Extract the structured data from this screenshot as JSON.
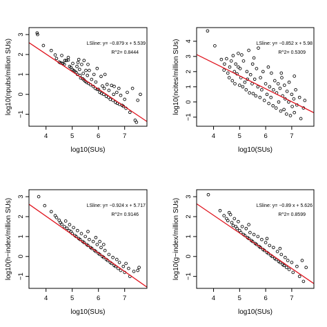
{
  "chart_data": [
    {
      "type": "scatter",
      "xlabel": "log10(SUs)",
      "ylabel": "log10(npubs/million SUs)",
      "xlim": [
        3.35,
        7.85
      ],
      "ylim": [
        -1.6,
        3.35
      ],
      "xticks": [
        4,
        5,
        6,
        7
      ],
      "yticks": [
        -1,
        0,
        1,
        2,
        3
      ],
      "fit": {
        "slope": -0.879,
        "intercept": 5.539,
        "color": "#e0141e"
      },
      "annotation": {
        "equation": "LSline: y= −0.879 x + 5.539",
        "r2": "R^2= 0.8444"
      },
      "points": [
        [
          3.66,
          3.08
        ],
        [
          3.68,
          3.0
        ],
        [
          3.9,
          2.45
        ],
        [
          4.2,
          2.2
        ],
        [
          4.35,
          1.98
        ],
        [
          4.4,
          1.8
        ],
        [
          4.5,
          1.62
        ],
        [
          4.55,
          1.58
        ],
        [
          4.6,
          1.56
        ],
        [
          4.65,
          1.55
        ],
        [
          4.7,
          1.5
        ],
        [
          4.72,
          1.7
        ],
        [
          4.78,
          1.7
        ],
        [
          4.85,
          1.72
        ],
        [
          4.9,
          1.4
        ],
        [
          4.95,
          1.35
        ],
        [
          5.0,
          1.25
        ],
        [
          5.02,
          1.55
        ],
        [
          5.05,
          1.2
        ],
        [
          5.1,
          1.15
        ],
        [
          5.15,
          1.1
        ],
        [
          5.18,
          1.4
        ],
        [
          5.2,
          1.0
        ],
        [
          5.22,
          1.6
        ],
        [
          5.28,
          1.25
        ],
        [
          5.3,
          0.95
        ],
        [
          5.32,
          0.82
        ],
        [
          5.36,
          1.5
        ],
        [
          5.4,
          0.78
        ],
        [
          5.42,
          1.05
        ],
        [
          5.45,
          0.72
        ],
        [
          5.5,
          0.65
        ],
        [
          5.52,
          1.2
        ],
        [
          5.55,
          0.6
        ],
        [
          5.58,
          0.95
        ],
        [
          5.62,
          0.55
        ],
        [
          5.65,
          1.2
        ],
        [
          5.7,
          0.48
        ],
        [
          5.74,
          0.75
        ],
        [
          5.8,
          0.4
        ],
        [
          5.83,
          1.0
        ],
        [
          5.88,
          0.3
        ],
        [
          5.9,
          0.62
        ],
        [
          5.95,
          0.25
        ],
        [
          6.0,
          0.25
        ],
        [
          6.05,
          0.1
        ],
        [
          6.1,
          0.9
        ],
        [
          6.12,
          0.05
        ],
        [
          6.15,
          0.42
        ],
        [
          6.2,
          0.0
        ],
        [
          6.22,
          0.3
        ],
        [
          6.25,
          1.0
        ],
        [
          6.3,
          -0.1
        ],
        [
          6.33,
          0.5
        ],
        [
          6.38,
          -0.15
        ],
        [
          6.4,
          0.2
        ],
        [
          6.45,
          -0.25
        ],
        [
          6.5,
          0.45
        ],
        [
          6.55,
          -0.3
        ],
        [
          6.58,
          0.0
        ],
        [
          6.6,
          0.4
        ],
        [
          6.65,
          -0.4
        ],
        [
          6.7,
          0.1
        ],
        [
          6.72,
          -0.45
        ],
        [
          6.78,
          0.3
        ],
        [
          6.8,
          -0.5
        ],
        [
          6.85,
          -0.05
        ],
        [
          6.9,
          -0.55
        ],
        [
          6.95,
          -0.6
        ],
        [
          7.0,
          -0.25
        ],
        [
          7.05,
          -0.7
        ],
        [
          7.1,
          0.1
        ],
        [
          7.2,
          -0.9
        ],
        [
          7.3,
          0.3
        ],
        [
          7.4,
          -1.3
        ],
        [
          7.45,
          -1.4
        ],
        [
          7.5,
          -0.3
        ],
        [
          7.6,
          0.0
        ],
        [
          4.6,
          1.95
        ],
        [
          4.85,
          1.85
        ],
        [
          5.25,
          1.75
        ],
        [
          5.45,
          1.7
        ],
        [
          5.6,
          1.5
        ],
        [
          5.95,
          1.3
        ]
      ]
    },
    {
      "type": "scatter",
      "xlabel": "log10(SUs)",
      "ylabel": "log10(ncites/million SUs)",
      "xlim": [
        3.35,
        7.85
      ],
      "ylim": [
        -1.6,
        4.9
      ],
      "xticks": [
        4,
        5,
        6,
        7
      ],
      "yticks": [
        -1,
        0,
        1,
        2,
        3,
        4
      ],
      "fit": {
        "slope": -0.852,
        "intercept": 5.98,
        "color": "#e0141e"
      },
      "annotation": {
        "equation": "LSline: y= −0.852 x + 5.98",
        "r2": "R^2= 0.5309"
      },
      "points": [
        [
          3.77,
          4.68
        ],
        [
          4.05,
          3.7
        ],
        [
          4.3,
          2.8
        ],
        [
          4.4,
          2.1
        ],
        [
          4.42,
          2.5
        ],
        [
          4.5,
          2.85
        ],
        [
          4.55,
          1.9
        ],
        [
          4.6,
          1.6
        ],
        [
          4.62,
          2.3
        ],
        [
          4.68,
          2.7
        ],
        [
          4.72,
          1.4
        ],
        [
          4.75,
          3.05
        ],
        [
          4.8,
          2.0
        ],
        [
          4.82,
          1.2
        ],
        [
          4.85,
          2.5
        ],
        [
          4.9,
          1.85
        ],
        [
          4.95,
          2.3
        ],
        [
          5.0,
          1.1
        ],
        [
          5.02,
          2.2
        ],
        [
          5.05,
          1.6
        ],
        [
          5.08,
          3.1
        ],
        [
          5.12,
          1.0
        ],
        [
          5.15,
          2.7
        ],
        [
          5.2,
          1.3
        ],
        [
          5.25,
          0.8
        ],
        [
          5.28,
          2.0
        ],
        [
          5.3,
          1.5
        ],
        [
          5.35,
          3.4
        ],
        [
          5.38,
          0.6
        ],
        [
          5.42,
          1.8
        ],
        [
          5.48,
          1.2
        ],
        [
          5.5,
          2.5
        ],
        [
          5.52,
          0.55
        ],
        [
          5.58,
          1.5
        ],
        [
          5.62,
          0.4
        ],
        [
          5.65,
          2.2
        ],
        [
          5.7,
          1.0
        ],
        [
          5.72,
          3.55
        ],
        [
          5.78,
          0.3
        ],
        [
          5.8,
          1.6
        ],
        [
          5.85,
          0.8
        ],
        [
          5.9,
          2.0
        ],
        [
          5.95,
          0.1
        ],
        [
          6.0,
          1.2
        ],
        [
          6.05,
          0.5
        ],
        [
          6.1,
          2.3
        ],
        [
          6.12,
          -0.1
        ],
        [
          6.15,
          1.0
        ],
        [
          6.2,
          0.3
        ],
        [
          6.22,
          1.9
        ],
        [
          6.28,
          -0.25
        ],
        [
          6.3,
          0.8
        ],
        [
          6.35,
          1.4
        ],
        [
          6.4,
          -0.4
        ],
        [
          6.42,
          0.6
        ],
        [
          6.48,
          1.2
        ],
        [
          6.5,
          0.0
        ],
        [
          6.55,
          0.9
        ],
        [
          6.58,
          -0.6
        ],
        [
          6.62,
          1.6
        ],
        [
          6.65,
          0.4
        ],
        [
          6.7,
          -0.5
        ],
        [
          6.72,
          1.1
        ],
        [
          6.75,
          0.2
        ],
        [
          6.8,
          -0.8
        ],
        [
          6.82,
          0.7
        ],
        [
          6.88,
          0.0
        ],
        [
          6.9,
          1.3
        ],
        [
          6.95,
          -0.9
        ],
        [
          7.0,
          0.5
        ],
        [
          7.02,
          -0.3
        ],
        [
          7.08,
          0.2
        ],
        [
          7.1,
          -0.7
        ],
        [
          7.15,
          0.8
        ],
        [
          7.2,
          -0.2
        ],
        [
          7.3,
          0.3
        ],
        [
          7.35,
          -1.1
        ],
        [
          7.45,
          -0.4
        ],
        [
          7.5,
          0.1
        ],
        [
          7.1,
          1.7
        ],
        [
          6.6,
          1.9
        ],
        [
          5.55,
          2.9
        ],
        [
          4.95,
          3.2
        ]
      ]
    },
    {
      "type": "scatter",
      "xlabel": "log10(SUs)",
      "ylabel": "log10(h−index/million SUs)",
      "xlim": [
        3.35,
        7.85
      ],
      "ylim": [
        -1.6,
        3.35
      ],
      "xticks": [
        4,
        5,
        6,
        7
      ],
      "yticks": [
        -1,
        0,
        1,
        2,
        3
      ],
      "fit": {
        "slope": -0.924,
        "intercept": 5.717,
        "color": "#e0141e"
      },
      "annotation": {
        "equation": "LSline: y= −0.924 x + 5.717",
        "r2": "R^2= 0.9146"
      },
      "points": [
        [
          3.72,
          3.0
        ],
        [
          3.95,
          2.55
        ],
        [
          4.2,
          2.25
        ],
        [
          4.4,
          1.95
        ],
        [
          4.5,
          1.82
        ],
        [
          4.55,
          1.7
        ],
        [
          4.6,
          1.62
        ],
        [
          4.7,
          1.5
        ],
        [
          4.75,
          1.78
        ],
        [
          4.8,
          1.42
        ],
        [
          4.88,
          1.3
        ],
        [
          4.9,
          1.6
        ],
        [
          4.95,
          1.25
        ],
        [
          5.0,
          1.15
        ],
        [
          5.05,
          1.45
        ],
        [
          5.1,
          1.05
        ],
        [
          5.15,
          1.0
        ],
        [
          5.2,
          1.3
        ],
        [
          5.25,
          0.9
        ],
        [
          5.3,
          0.85
        ],
        [
          5.35,
          1.15
        ],
        [
          5.4,
          0.75
        ],
        [
          5.45,
          0.7
        ],
        [
          5.5,
          1.0
        ],
        [
          5.55,
          0.6
        ],
        [
          5.6,
          0.55
        ],
        [
          5.65,
          0.85
        ],
        [
          5.7,
          0.45
        ],
        [
          5.75,
          0.4
        ],
        [
          5.8,
          0.75
        ],
        [
          5.85,
          0.3
        ],
        [
          5.9,
          0.25
        ],
        [
          5.95,
          0.6
        ],
        [
          6.0,
          0.15
        ],
        [
          6.05,
          0.1
        ],
        [
          6.1,
          0.45
        ],
        [
          6.15,
          0.0
        ],
        [
          6.2,
          -0.05
        ],
        [
          6.25,
          0.3
        ],
        [
          6.3,
          -0.15
        ],
        [
          6.35,
          -0.2
        ],
        [
          6.4,
          0.1
        ],
        [
          6.45,
          -0.3
        ],
        [
          6.5,
          -0.35
        ],
        [
          6.55,
          -0.05
        ],
        [
          6.6,
          -0.45
        ],
        [
          6.65,
          -0.5
        ],
        [
          6.7,
          -0.15
        ],
        [
          6.75,
          -0.6
        ],
        [
          6.8,
          -0.3
        ],
        [
          6.85,
          -0.7
        ],
        [
          6.95,
          -0.5
        ],
        [
          7.0,
          -0.8
        ],
        [
          7.05,
          -0.35
        ],
        [
          7.15,
          -0.6
        ],
        [
          7.2,
          -1.0
        ],
        [
          7.35,
          -0.75
        ],
        [
          7.5,
          -0.7
        ],
        [
          7.55,
          -0.55
        ],
        [
          5.6,
          1.25
        ],
        [
          5.9,
          0.95
        ],
        [
          6.2,
          0.6
        ],
        [
          4.35,
          2.05
        ],
        [
          6.05,
          0.75
        ]
      ]
    },
    {
      "type": "scatter",
      "xlabel": "log10(SUs)",
      "ylabel": "log10(g−index/million SUs)",
      "xlim": [
        3.35,
        7.85
      ],
      "ylim": [
        -1.6,
        3.35
      ],
      "xticks": [
        4,
        5,
        6,
        7
      ],
      "yticks": [
        -1,
        0,
        1,
        2,
        3
      ],
      "fit": {
        "slope": -0.89,
        "intercept": 5.626,
        "color": "#e0141e"
      },
      "annotation": {
        "equation": "LSline: y= −0.89 x + 5.626",
        "r2": "R^2= 0.8599"
      },
      "points": [
        [
          3.8,
          3.1
        ],
        [
          4.25,
          2.3
        ],
        [
          4.4,
          2.05
        ],
        [
          4.5,
          1.9
        ],
        [
          4.55,
          1.8
        ],
        [
          4.6,
          2.2
        ],
        [
          4.7,
          1.7
        ],
        [
          4.75,
          1.55
        ],
        [
          4.8,
          1.9
        ],
        [
          4.85,
          1.5
        ],
        [
          4.9,
          1.4
        ],
        [
          4.95,
          1.75
        ],
        [
          5.0,
          1.3
        ],
        [
          5.05,
          1.2
        ],
        [
          5.1,
          1.5
        ],
        [
          5.15,
          1.1
        ],
        [
          5.2,
          1.05
        ],
        [
          5.25,
          1.4
        ],
        [
          5.3,
          0.95
        ],
        [
          5.35,
          0.9
        ],
        [
          5.4,
          1.2
        ],
        [
          5.45,
          0.8
        ],
        [
          5.5,
          0.75
        ],
        [
          5.55,
          1.1
        ],
        [
          5.6,
          0.65
        ],
        [
          5.65,
          0.6
        ],
        [
          5.7,
          1.0
        ],
        [
          5.75,
          0.5
        ],
        [
          5.8,
          0.45
        ],
        [
          5.85,
          0.85
        ],
        [
          5.9,
          0.35
        ],
        [
          5.95,
          0.3
        ],
        [
          6.0,
          0.7
        ],
        [
          6.05,
          0.2
        ],
        [
          6.1,
          0.15
        ],
        [
          6.15,
          0.55
        ],
        [
          6.2,
          0.05
        ],
        [
          6.25,
          0.0
        ],
        [
          6.3,
          0.45
        ],
        [
          6.35,
          -0.1
        ],
        [
          6.4,
          -0.15
        ],
        [
          6.45,
          0.25
        ],
        [
          6.5,
          -0.25
        ],
        [
          6.55,
          -0.3
        ],
        [
          6.6,
          0.1
        ],
        [
          6.65,
          -0.4
        ],
        [
          6.7,
          -0.45
        ],
        [
          6.75,
          -0.05
        ],
        [
          6.8,
          -0.55
        ],
        [
          6.85,
          -0.2
        ],
        [
          6.9,
          -0.65
        ],
        [
          7.0,
          -0.3
        ],
        [
          7.05,
          -0.8
        ],
        [
          7.2,
          -0.5
        ],
        [
          7.3,
          -1.0
        ],
        [
          7.4,
          -0.2
        ],
        [
          7.45,
          -1.25
        ],
        [
          7.55,
          -0.55
        ],
        [
          4.65,
          2.1
        ],
        [
          5.35,
          1.6
        ],
        [
          6.05,
          0.9
        ],
        [
          6.55,
          0.4
        ]
      ]
    }
  ]
}
